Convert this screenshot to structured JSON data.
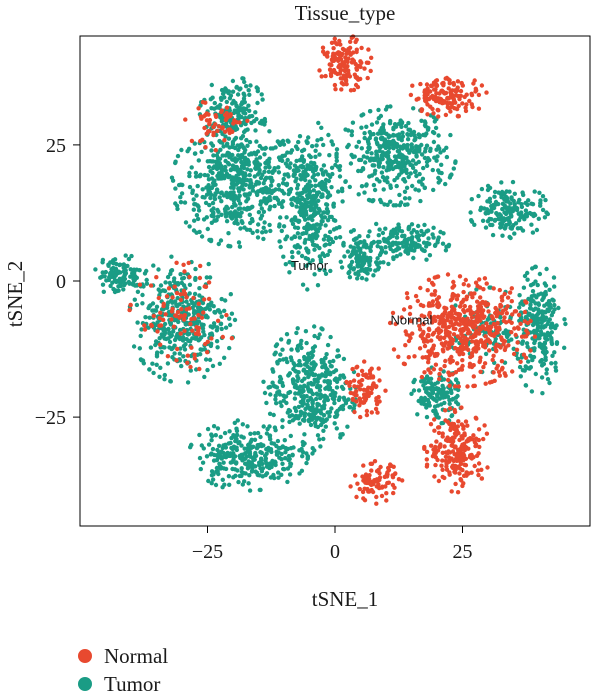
{
  "chart_data": {
    "type": "scatter",
    "title": "Tissue_type",
    "xlabel": "tSNE_1",
    "ylabel": "tSNE_2",
    "xlim": [
      -50,
      50
    ],
    "ylim": [
      -45,
      45
    ],
    "xticks": [
      -25,
      0,
      25
    ],
    "yticks": [
      -25,
      0,
      25
    ],
    "xtick_labels": [
      "−25",
      "0",
      "25"
    ],
    "ytick_labels": [
      "−25",
      "0",
      "25"
    ],
    "colors": {
      "Normal": "#e8492f",
      "Tumor": "#1a9c85"
    },
    "series": [
      {
        "name": "Normal",
        "clusters": [
          {
            "cx": 2,
            "cy": 40,
            "rx": 4,
            "ry": 4,
            "share": 1.0
          },
          {
            "cx": 22,
            "cy": 34,
            "rx": 6,
            "ry": 3,
            "share": 1.0
          },
          {
            "cx": 25,
            "cy": -9,
            "rx": 11,
            "ry": 8,
            "share": 1.0
          },
          {
            "cx": 24,
            "cy": -31,
            "rx": 5,
            "ry": 6,
            "share": 1.0
          },
          {
            "cx": 6,
            "cy": -20,
            "rx": 3,
            "ry": 4,
            "share": 0.6
          },
          {
            "cx": 8,
            "cy": -37,
            "rx": 4,
            "ry": 3,
            "share": 0.7
          },
          {
            "cx": -30,
            "cy": -7,
            "rx": 8,
            "ry": 8,
            "share": 0.15
          },
          {
            "cx": -23,
            "cy": 29,
            "rx": 5,
            "ry": 4,
            "share": 0.15
          }
        ]
      },
      {
        "name": "Tumor",
        "clusters": [
          {
            "cx": -19,
            "cy": 18,
            "rx": 10,
            "ry": 9,
            "share": 1.0
          },
          {
            "cx": -5,
            "cy": 14,
            "rx": 5,
            "ry": 12,
            "share": 1.0
          },
          {
            "cx": 12,
            "cy": 23,
            "rx": 9,
            "ry": 7,
            "share": 1.0
          },
          {
            "cx": 34,
            "cy": 13,
            "rx": 6,
            "ry": 4,
            "share": 1.0
          },
          {
            "cx": 12,
            "cy": 7,
            "rx": 8,
            "ry": 3,
            "share": 1.0
          },
          {
            "cx": -30,
            "cy": -7,
            "rx": 8,
            "ry": 9,
            "share": 0.85
          },
          {
            "cx": -5,
            "cy": -20,
            "rx": 7,
            "ry": 9,
            "share": 1.0
          },
          {
            "cx": -17,
            "cy": -32,
            "rx": 9,
            "ry": 5,
            "share": 1.0
          },
          {
            "cx": 40,
            "cy": -9,
            "rx": 4,
            "ry": 9,
            "share": 1.0
          },
          {
            "cx": 5,
            "cy": 4,
            "rx": 3,
            "ry": 3,
            "share": 1.0
          },
          {
            "cx": -20,
            "cy": 31,
            "rx": 5,
            "ry": 5,
            "share": 0.85
          },
          {
            "cx": -42,
            "cy": 1,
            "rx": 4,
            "ry": 3,
            "share": 1.0
          },
          {
            "cx": 30,
            "cy": -9,
            "rx": 6,
            "ry": 6,
            "share": 0.3
          },
          {
            "cx": 20,
            "cy": -21,
            "rx": 4,
            "ry": 4,
            "share": 1.0
          }
        ]
      }
    ],
    "annotations": [
      {
        "text": "Tumor",
        "x": -5,
        "y": 2
      },
      {
        "text": "Normal",
        "x": 15,
        "y": -8
      }
    ],
    "grid": false,
    "legend": "bottom-left"
  },
  "legend": {
    "items": [
      {
        "label": "Normal"
      },
      {
        "label": "Tumor"
      }
    ]
  }
}
